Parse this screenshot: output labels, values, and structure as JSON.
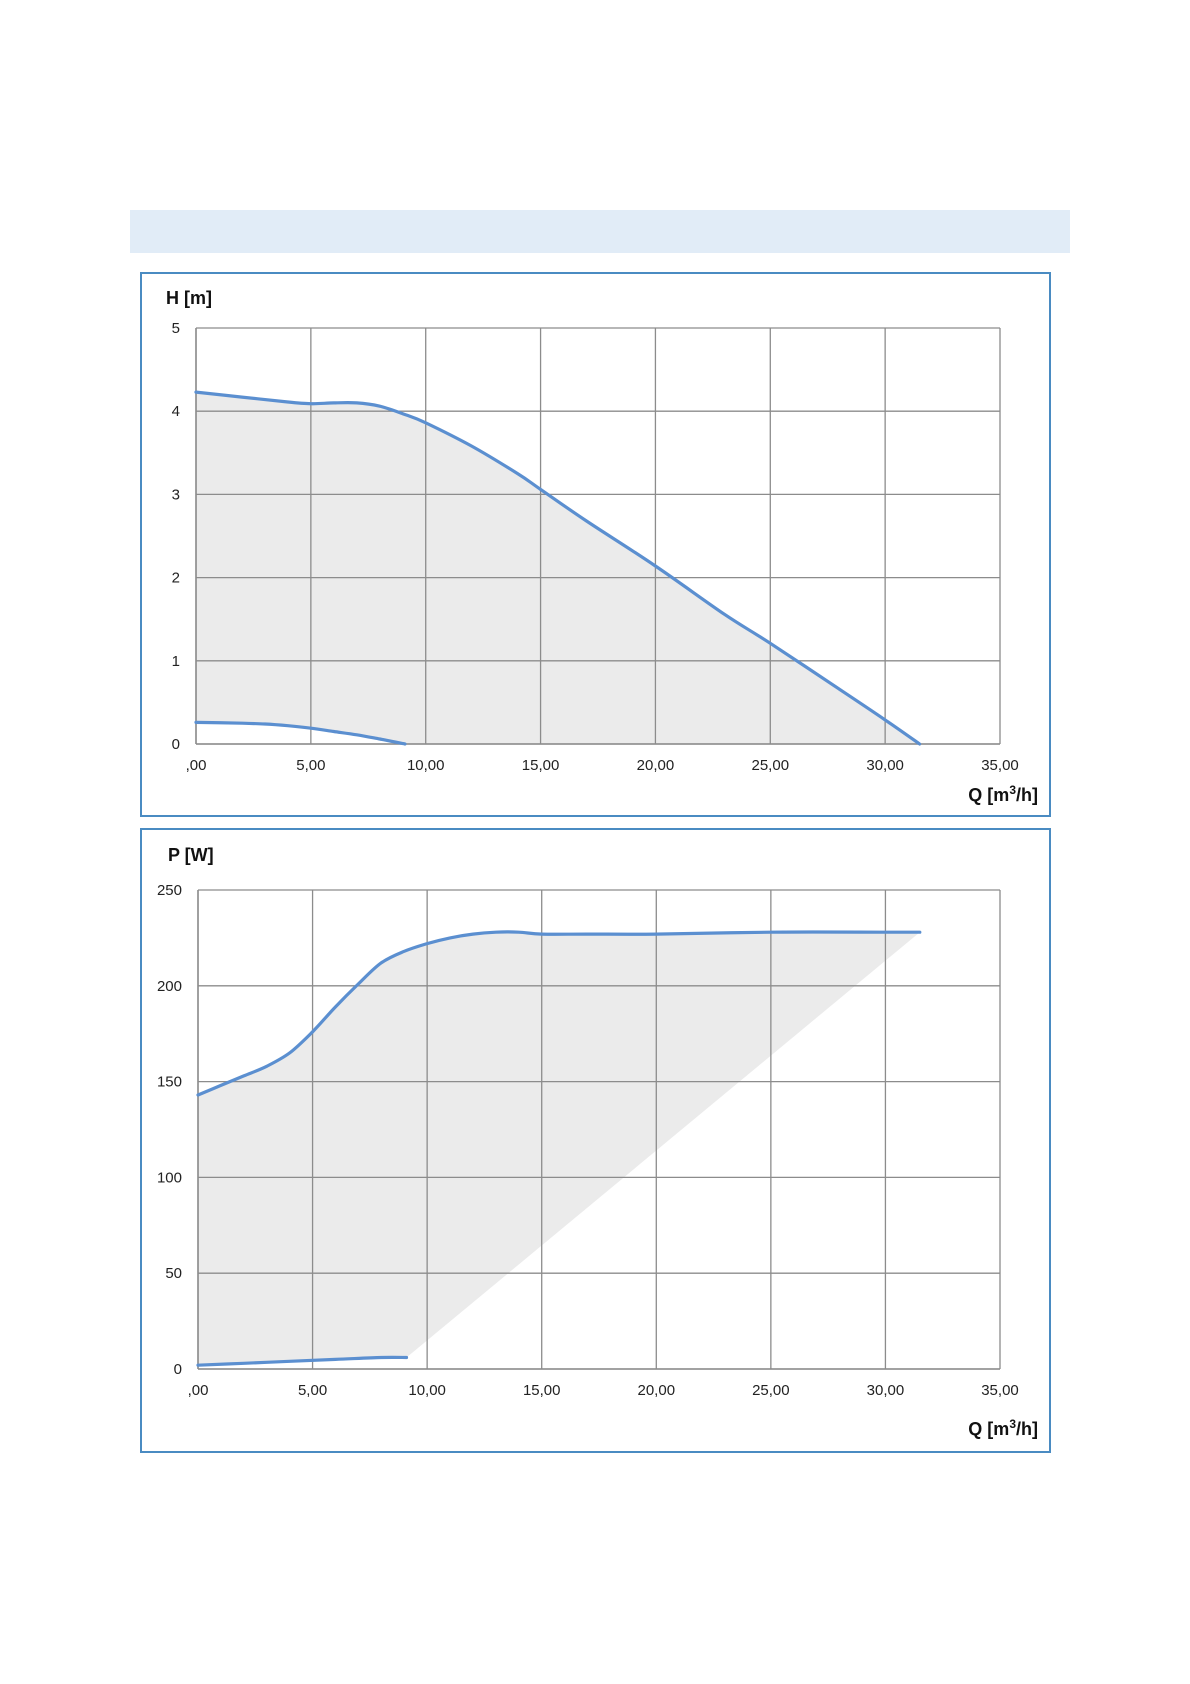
{
  "chart_data": [
    {
      "type": "area",
      "ylabel": "H [m]",
      "xlabel_main": "Q [m",
      "xlabel_sup": "3",
      "xlabel_tail": "/h]",
      "xlim": [
        0,
        35
      ],
      "ylim": [
        0,
        5
      ],
      "x_ticks": [
        0,
        5,
        10,
        15,
        20,
        25,
        30,
        35
      ],
      "x_tick_labels": [
        ",00",
        "5,00",
        "10,00",
        "15,00",
        "20,00",
        "25,00",
        "30,00",
        "35,00"
      ],
      "y_ticks": [
        0,
        1,
        2,
        3,
        4,
        5
      ],
      "y_tick_labels": [
        "0",
        "1",
        "2",
        "3",
        "4",
        "5"
      ],
      "grid": true,
      "colors": {
        "series": "#5b8fd0",
        "area": "#ebebeb",
        "grid": "#8c8c8c",
        "frame": "#4a8bc2"
      },
      "series": [
        {
          "role": "upper",
          "x": [
            0,
            2,
            4,
            5,
            6,
            7,
            8,
            9,
            10,
            12,
            14,
            15,
            17,
            20,
            23,
            25,
            28,
            30,
            31.5
          ],
          "y": [
            4.23,
            4.17,
            4.11,
            4.09,
            4.1,
            4.1,
            4.06,
            3.97,
            3.86,
            3.58,
            3.25,
            3.06,
            2.68,
            2.14,
            1.56,
            1.21,
            0.66,
            0.29,
            0.0
          ]
        },
        {
          "role": "lower",
          "x": [
            0,
            2,
            3,
            4,
            5,
            6,
            7,
            8,
            9.1
          ],
          "y": [
            0.26,
            0.25,
            0.24,
            0.22,
            0.19,
            0.15,
            0.11,
            0.06,
            0.0
          ]
        }
      ]
    },
    {
      "type": "area",
      "ylabel": "P [W]",
      "xlabel_main": "Q [m",
      "xlabel_sup": "3",
      "xlabel_tail": "/h]",
      "xlim": [
        0,
        35
      ],
      "ylim": [
        0,
        250
      ],
      "x_ticks": [
        0,
        5,
        10,
        15,
        20,
        25,
        30,
        35
      ],
      "x_tick_labels": [
        ",00",
        "5,00",
        "10,00",
        "15,00",
        "20,00",
        "25,00",
        "30,00",
        "35,00"
      ],
      "y_ticks": [
        0,
        50,
        100,
        150,
        200,
        250
      ],
      "y_tick_labels": [
        "0",
        "50",
        "100",
        "150",
        "200",
        "250"
      ],
      "grid": true,
      "colors": {
        "series": "#5b8fd0",
        "area": "#ebebeb",
        "grid": "#8c8c8c",
        "frame": "#4a8bc2"
      },
      "series": [
        {
          "role": "upper",
          "x": [
            0,
            1,
            2,
            3,
            4,
            5,
            6,
            7,
            8,
            9,
            10,
            11,
            12,
            13,
            14,
            15,
            17,
            20,
            25,
            30,
            31.5
          ],
          "y": [
            143,
            148,
            153,
            158,
            165,
            176,
            189,
            201,
            212,
            218,
            222,
            225,
            227,
            228,
            228,
            227,
            227,
            227,
            228,
            228,
            228
          ]
        },
        {
          "role": "lower",
          "x": [
            0,
            2,
            4,
            6,
            8,
            9.1
          ],
          "y": [
            2,
            3,
            4,
            5,
            6,
            6
          ]
        }
      ]
    }
  ]
}
